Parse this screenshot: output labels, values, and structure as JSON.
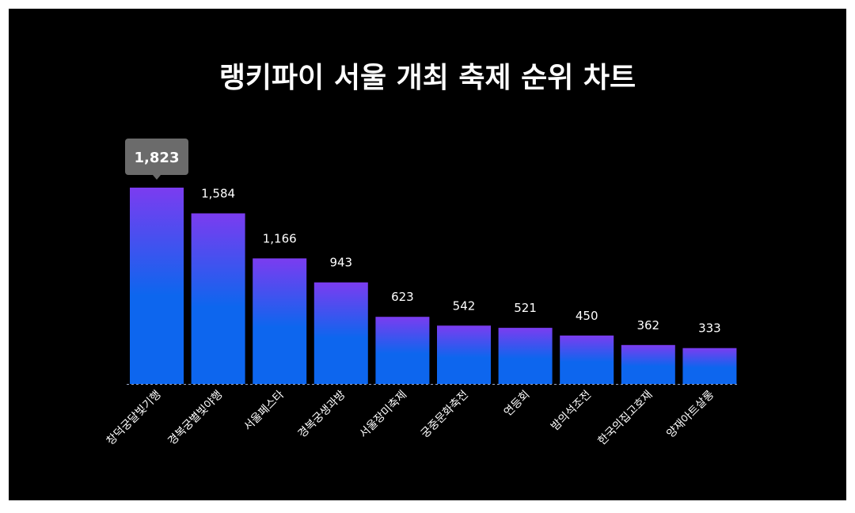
{
  "chart_data": {
    "type": "bar",
    "title": "랭키파이 서울 개최 축제 순위 차트",
    "categories": [
      "창덕궁달빛기행",
      "경복궁별빛야행",
      "서울페스타",
      "경복궁생과방",
      "서울장미축제",
      "궁중문화축전",
      "연등회",
      "밤의석조전",
      "한국의집고호재",
      "양재아트살롱"
    ],
    "values": [
      1823,
      1584,
      1166,
      943,
      623,
      542,
      521,
      450,
      362,
      333
    ],
    "value_labels": [
      "1,823",
      "1,584",
      "1,166",
      "943",
      "623",
      "542",
      "521",
      "450",
      "362",
      "333"
    ],
    "highlighted_index": 0,
    "xlabel": "",
    "ylabel": "",
    "ylim": [
      0,
      1823
    ],
    "grid": false,
    "legend": "none",
    "colors": {
      "background": "#000000",
      "bar_top": "#7b3cf0",
      "bar_bottom": "#0d66ee",
      "tooltip": "#6b6b6b",
      "baseline": "#9aa7c7",
      "text": "#ffffff"
    }
  }
}
